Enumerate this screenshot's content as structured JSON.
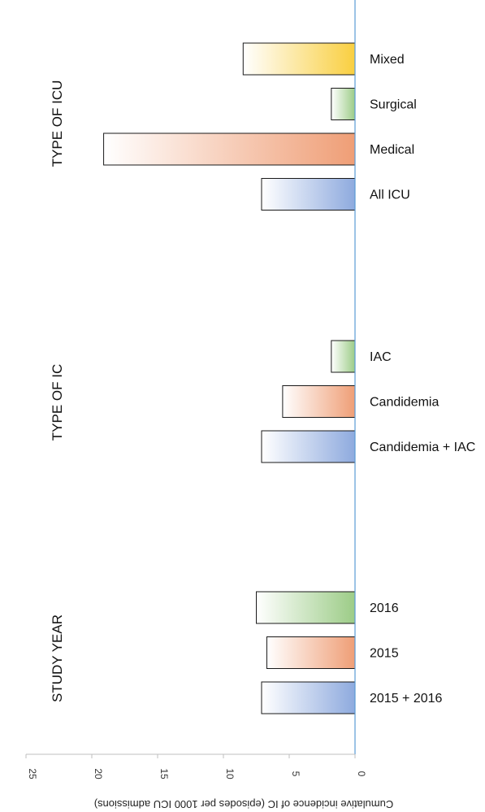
{
  "chart_data": {
    "type": "bar",
    "orientation": "horizontal",
    "xlabel": "Cumulative incidence of IC (episodes per 1000 ICU admissions)",
    "xlim": [
      0,
      25
    ],
    "x_ticks": [
      "0",
      "5",
      "10",
      "15",
      "20",
      "25"
    ],
    "grid": false,
    "groups": [
      {
        "label": "TYPE OF ICU",
        "bars": [
          {
            "label": "Mixed",
            "value": 8.5,
            "color": "#f9cf40"
          },
          {
            "label": "Surgical",
            "value": 1.8,
            "color": "#9ccc87"
          },
          {
            "label": "Medical",
            "value": 19.1,
            "color": "#ef9e76"
          },
          {
            "label": "All ICU",
            "value": 7.1,
            "color": "#8eaade"
          }
        ]
      },
      {
        "label": "TYPE OF IC",
        "bars": [
          {
            "label": "IAC",
            "value": 1.8,
            "color": "#9ccc87"
          },
          {
            "label": "Candidemia",
            "value": 5.5,
            "color": "#ef9e76"
          },
          {
            "label": "Candidemia + IAC",
            "value": 7.1,
            "color": "#8eaade"
          }
        ]
      },
      {
        "label": "STUDY YEAR",
        "bars": [
          {
            "label": "2016",
            "value": 7.5,
            "color": "#9ccc87"
          },
          {
            "label": "2015",
            "value": 6.7,
            "color": "#ef9e76"
          },
          {
            "label": "2015 + 2016",
            "value": 7.1,
            "color": "#8eaade"
          }
        ]
      }
    ]
  }
}
